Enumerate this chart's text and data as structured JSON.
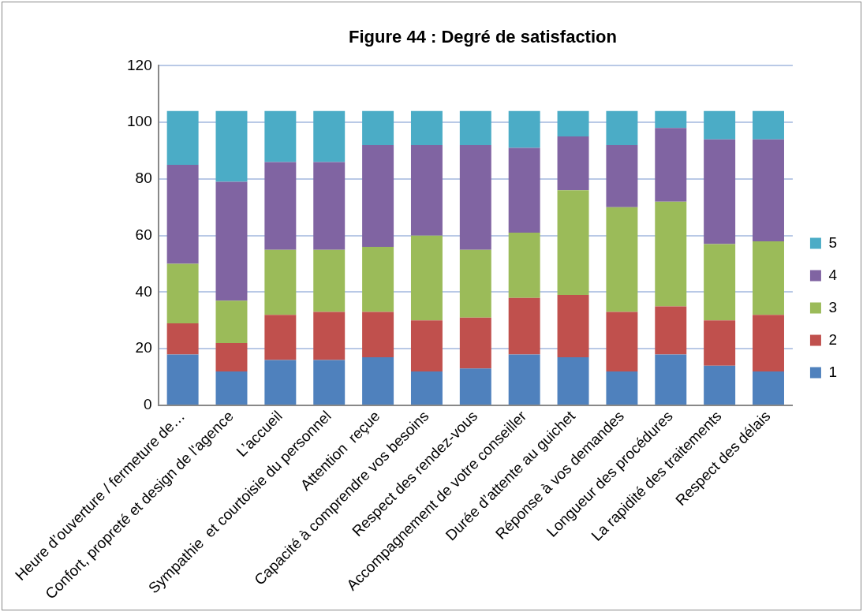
{
  "chart_data": {
    "type": "bar",
    "stacked": true,
    "title": "Figure 44 : Degré de satisfaction",
    "categories": [
      "Heure d’ouverture / fermeture de…",
      "Confort, propreté et design de l'agence",
      "L’accueil",
      "Sympathie  et courtoisie du personnel",
      "Attention  reçue",
      "Capacité à comprendre vos besoins",
      "Respect des rendez-vous",
      "Accompagnement de votre conseiller",
      "Durée d’attente au guichet",
      "Réponse à vos demandes",
      "Longueur des procédures",
      "La rapidité des traitements",
      "Respect des délais"
    ],
    "series": [
      {
        "name": "1",
        "color": "#4f81bd",
        "values": [
          18,
          12,
          16,
          16,
          17,
          12,
          13,
          18,
          17,
          12,
          18,
          14,
          12
        ]
      },
      {
        "name": "2",
        "color": "#c0504d",
        "values": [
          11,
          10,
          16,
          17,
          16,
          18,
          18,
          20,
          22,
          21,
          17,
          16,
          20
        ]
      },
      {
        "name": "3",
        "color": "#9bbb59",
        "values": [
          21,
          15,
          23,
          22,
          23,
          30,
          24,
          23,
          37,
          37,
          37,
          27,
          26
        ]
      },
      {
        "name": "4",
        "color": "#8064a2",
        "values": [
          35,
          42,
          31,
          31,
          36,
          32,
          37,
          30,
          19,
          22,
          26,
          37,
          36
        ]
      },
      {
        "name": "5",
        "color": "#4bacc6",
        "values": [
          19,
          25,
          18,
          18,
          12,
          12,
          12,
          13,
          9,
          12,
          6,
          10,
          10
        ]
      }
    ],
    "ylim": [
      0,
      120
    ],
    "yticks": [
      0,
      20,
      40,
      60,
      80,
      100,
      120
    ],
    "grid": "y",
    "legend": "right"
  }
}
